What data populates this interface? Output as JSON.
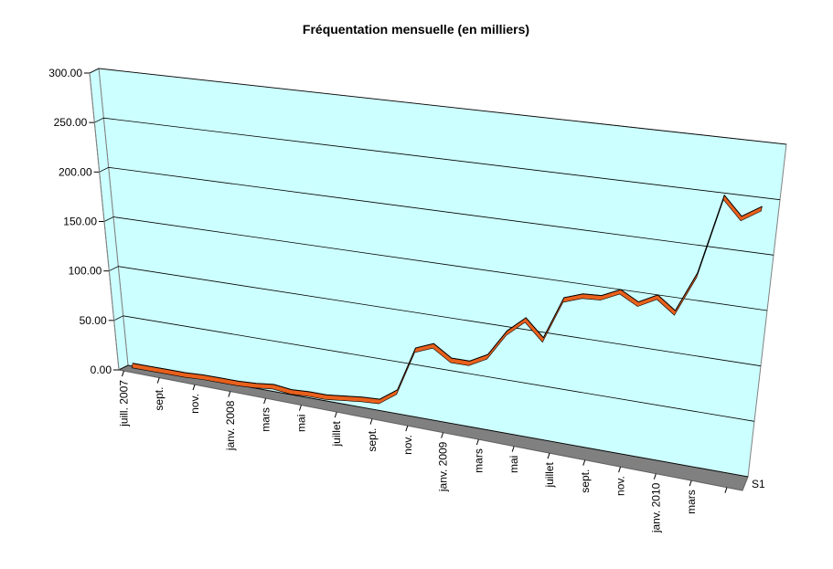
{
  "chart_data": {
    "type": "line",
    "title": "Fréquentation mensuelle (en milliers)",
    "categories": [
      "juill. 2007",
      null,
      "sept.",
      null,
      "nov.",
      null,
      "janv. 2008",
      null,
      "mars",
      null,
      "mai",
      null,
      "juillet",
      null,
      "sept.",
      null,
      "nov.",
      null,
      "janv. 2009",
      null,
      "mars",
      null,
      "mai",
      null,
      "juillet",
      null,
      "sept.",
      null,
      "nov.",
      null,
      "janv. 2010",
      null,
      "mars",
      null,
      null
    ],
    "series": [
      {
        "name": "S1",
        "color": "#e8601c",
        "values": [
          3,
          3,
          3,
          3,
          4,
          4,
          4,
          5,
          7,
          5,
          6,
          6,
          8,
          10,
          11,
          23,
          66,
          73,
          62,
          62,
          71,
          96,
          111,
          95,
          135,
          141,
          142,
          150,
          141,
          150,
          138,
          175,
          248,
          231,
          242
        ]
      }
    ],
    "ylim": [
      0,
      300
    ],
    "yticks": [
      {
        "value": 0,
        "label": "0.00"
      },
      {
        "value": 50,
        "label": "50.00"
      },
      {
        "value": 100,
        "label": "100.00"
      },
      {
        "value": 150,
        "label": "150.00"
      },
      {
        "value": 200,
        "label": "200.00"
      },
      {
        "value": 250,
        "label": "250.00"
      },
      {
        "value": 300,
        "label": "300.00"
      }
    ],
    "grid": true
  }
}
